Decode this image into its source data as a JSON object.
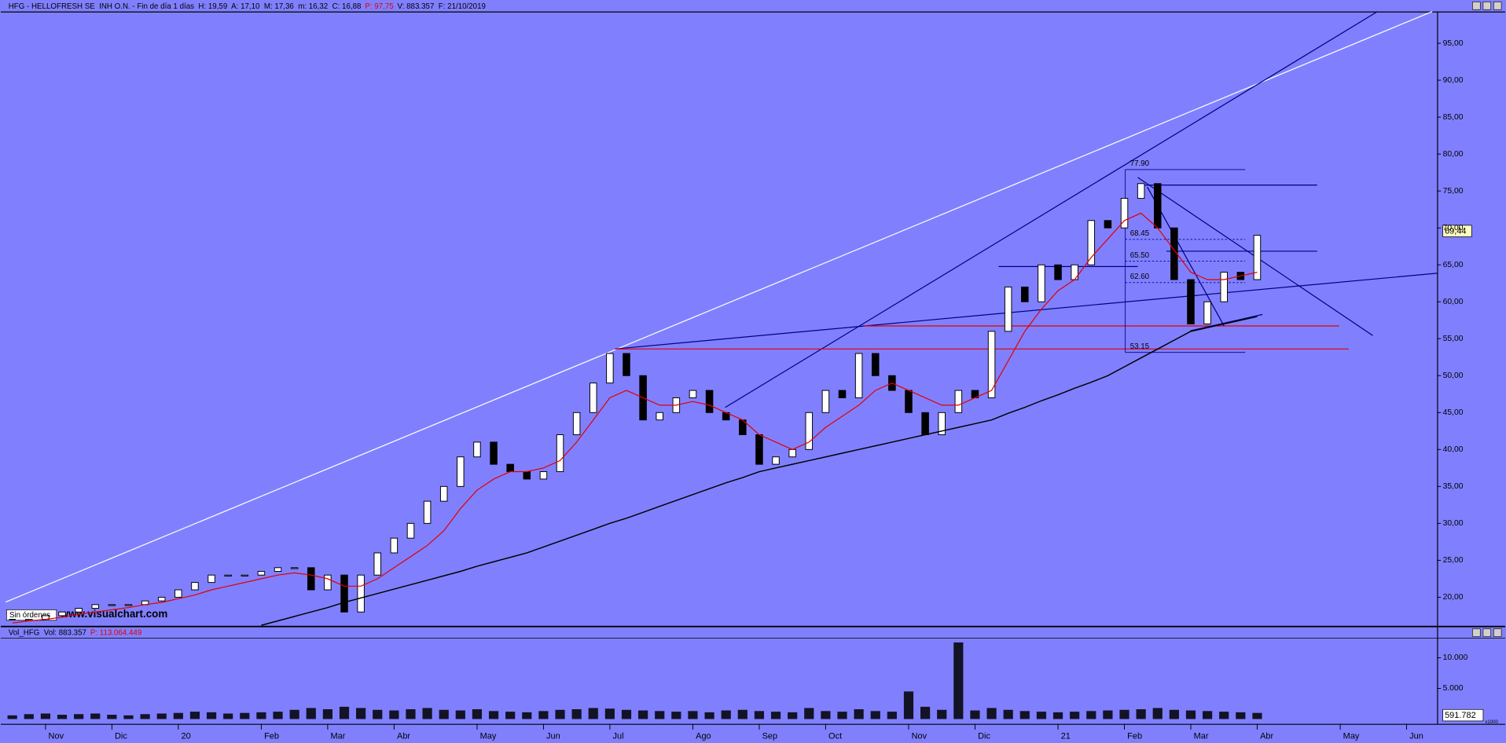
{
  "header": {
    "left": "HFG - HELLOFRESH SE  INH O.N. - Fin de día 1 días  H: 19,59  A: 17,10  M: 17,36  m: 16,32  C: 16,88",
    "p": "P: 97,75",
    "right": "V: 883.357  F: 21/10/2019"
  },
  "volume_header": {
    "left": "Vol_HFG  Vol: 883.357",
    "p": "P: 113.064.449"
  },
  "orders": "Sin órdenes",
  "watermark": "www.visualchart.com",
  "last_price": "69,44",
  "last_volume": "591.782",
  "volume_unit": "x1000",
  "chart_data": [
    {
      "type": "candlestick",
      "categories": [
        null,
        null,
        "Nov",
        null,
        null,
        null,
        "Dic",
        null,
        null,
        null,
        "20",
        null,
        null,
        null,
        null,
        "Feb",
        null,
        null,
        null,
        "Mar",
        null,
        null,
        null,
        "Abr",
        null,
        null,
        null,
        null,
        "May",
        null,
        null,
        null,
        "Jun",
        null,
        null,
        null,
        "Jul",
        null,
        null,
        null,
        null,
        "Ago",
        null,
        null,
        null,
        "Sep",
        null,
        null,
        null,
        "Oct",
        null,
        null,
        null,
        null,
        "Nov",
        null,
        null,
        null,
        "Dic",
        null,
        null,
        null,
        null,
        "21",
        null,
        null,
        null,
        "Feb",
        null,
        null,
        null,
        "Mar",
        null,
        null,
        null,
        "Abr",
        null,
        null,
        null,
        null,
        "May",
        null,
        null,
        null,
        "Jun",
        null
      ],
      "series": [
        {
          "role": "price",
          "color": "#000000",
          "values": [
            17,
            17,
            17.5,
            18,
            18.5,
            19,
            19,
            19,
            19.5,
            20,
            21,
            22,
            23,
            23,
            23,
            23.5,
            24,
            24,
            21,
            23,
            18,
            23,
            26,
            28,
            30,
            33,
            35,
            39,
            41,
            38,
            37,
            36,
            37,
            42,
            45,
            49,
            53,
            50,
            44,
            45,
            47,
            48,
            45,
            44,
            42,
            38,
            39,
            40,
            45,
            48,
            47,
            53,
            50,
            48,
            45,
            42,
            45,
            48,
            47,
            56,
            62,
            60,
            65,
            63,
            65,
            71,
            70,
            74,
            76,
            70,
            63,
            57,
            60,
            64,
            63,
            69,
            null,
            null,
            null,
            null,
            null,
            null,
            null,
            null,
            null,
            null
          ]
        },
        {
          "role": "average",
          "color": "#e00000",
          "values": [
            16.5,
            16.8,
            17,
            17.3,
            17.7,
            18,
            18.3,
            18.6,
            19,
            19.3,
            19.8,
            20.3,
            21,
            21.5,
            22,
            22.5,
            23,
            23.3,
            23,
            22.5,
            21.5,
            21.5,
            22.5,
            24,
            25.5,
            27,
            29,
            32,
            34.5,
            36,
            37,
            37,
            37.5,
            38.5,
            41,
            44,
            47,
            48,
            47,
            46,
            46,
            46.5,
            46,
            45,
            44,
            42,
            41,
            40,
            41,
            43,
            44.5,
            46,
            48,
            49,
            48,
            47,
            46,
            46,
            47,
            48,
            52,
            56,
            59,
            61.5,
            63,
            66,
            68.5,
            71,
            72,
            70,
            67,
            64,
            63,
            63,
            63.5,
            64,
            null,
            null,
            null,
            null,
            null,
            null,
            null,
            null,
            null,
            null
          ]
        },
        {
          "role": "average",
          "color": "#000000",
          "values": [
            null,
            null,
            null,
            null,
            null,
            null,
            null,
            null,
            null,
            null,
            null,
            null,
            null,
            null,
            null,
            16.2,
            16.8,
            17.4,
            18,
            18.6,
            19.3,
            19.9,
            20.5,
            21.1,
            21.7,
            22.3,
            22.9,
            23.5,
            24.2,
            24.8,
            25.4,
            26,
            26.8,
            27.6,
            28.4,
            29.2,
            30,
            30.7,
            31.5,
            32.3,
            33.1,
            33.9,
            34.7,
            35.5,
            36.2,
            37,
            37.5,
            38,
            38.5,
            39,
            39.5,
            40,
            40.5,
            41,
            41.5,
            42,
            42.5,
            43,
            43.5,
            44,
            44.9,
            45.7,
            46.6,
            47.4,
            48.3,
            49.1,
            50,
            51.2,
            52.4,
            53.6,
            54.8,
            56,
            56.5,
            57,
            57.5,
            58,
            null,
            null,
            null,
            null,
            null,
            null,
            null,
            null,
            null,
            null
          ]
        }
      ],
      "ylim": [
        16.1,
        99.3
      ],
      "yticks": [
        {
          "value": 20,
          "label": "20,00"
        },
        {
          "value": 25,
          "label": "25,00"
        },
        {
          "value": 30,
          "label": "30,00"
        },
        {
          "value": 35,
          "label": "35,00"
        },
        {
          "value": 40,
          "label": "40,00"
        },
        {
          "value": 45,
          "label": "45,00"
        },
        {
          "value": 50,
          "label": "50,00"
        },
        {
          "value": 55,
          "label": "55,00"
        },
        {
          "value": 60,
          "label": "60,00"
        },
        {
          "value": 65,
          "label": "65,00"
        },
        {
          "value": 70,
          "label": "70,00"
        },
        {
          "value": 75,
          "label": "75,00"
        },
        {
          "value": 80,
          "label": "80,00"
        },
        {
          "value": 85,
          "label": "85,00"
        },
        {
          "value": 90,
          "label": "90,00"
        },
        {
          "value": 95,
          "label": "95,00"
        }
      ],
      "annotations": [
        {
          "value": 77.9,
          "label": "77.90"
        },
        {
          "value": 68.45,
          "label": "68.45"
        },
        {
          "value": 65.5,
          "label": "65.50"
        },
        {
          "value": 62.6,
          "label": "62.60"
        },
        {
          "value": 53.15,
          "label": "53.15"
        }
      ]
    },
    {
      "type": "bar",
      "color": "#000000",
      "values": [
        600,
        800,
        900,
        700,
        800,
        900,
        700,
        600,
        800,
        900,
        1000,
        1200,
        1100,
        900,
        1000,
        1100,
        1200,
        1500,
        1800,
        1600,
        2000,
        1800,
        1500,
        1400,
        1600,
        1800,
        1500,
        1400,
        1600,
        1300,
        1200,
        1100,
        1300,
        1500,
        1600,
        1800,
        1700,
        1500,
        1400,
        1300,
        1200,
        1300,
        1100,
        1400,
        1500,
        1300,
        1200,
        1100,
        1800,
        1300,
        1200,
        1600,
        1300,
        1200,
        4500,
        2000,
        1500,
        12500,
        1400,
        1800,
        1500,
        1300,
        1200,
        1100,
        1200,
        1300,
        1400,
        1500,
        1600,
        1800,
        1500,
        1400,
        1300,
        1200,
        1100,
        1000
      ],
      "ylim": [
        0,
        13300
      ],
      "yticks": [
        {
          "value": 5000,
          "label": "5.000"
        },
        {
          "value": 10000,
          "label": "10.000"
        }
      ]
    }
  ]
}
